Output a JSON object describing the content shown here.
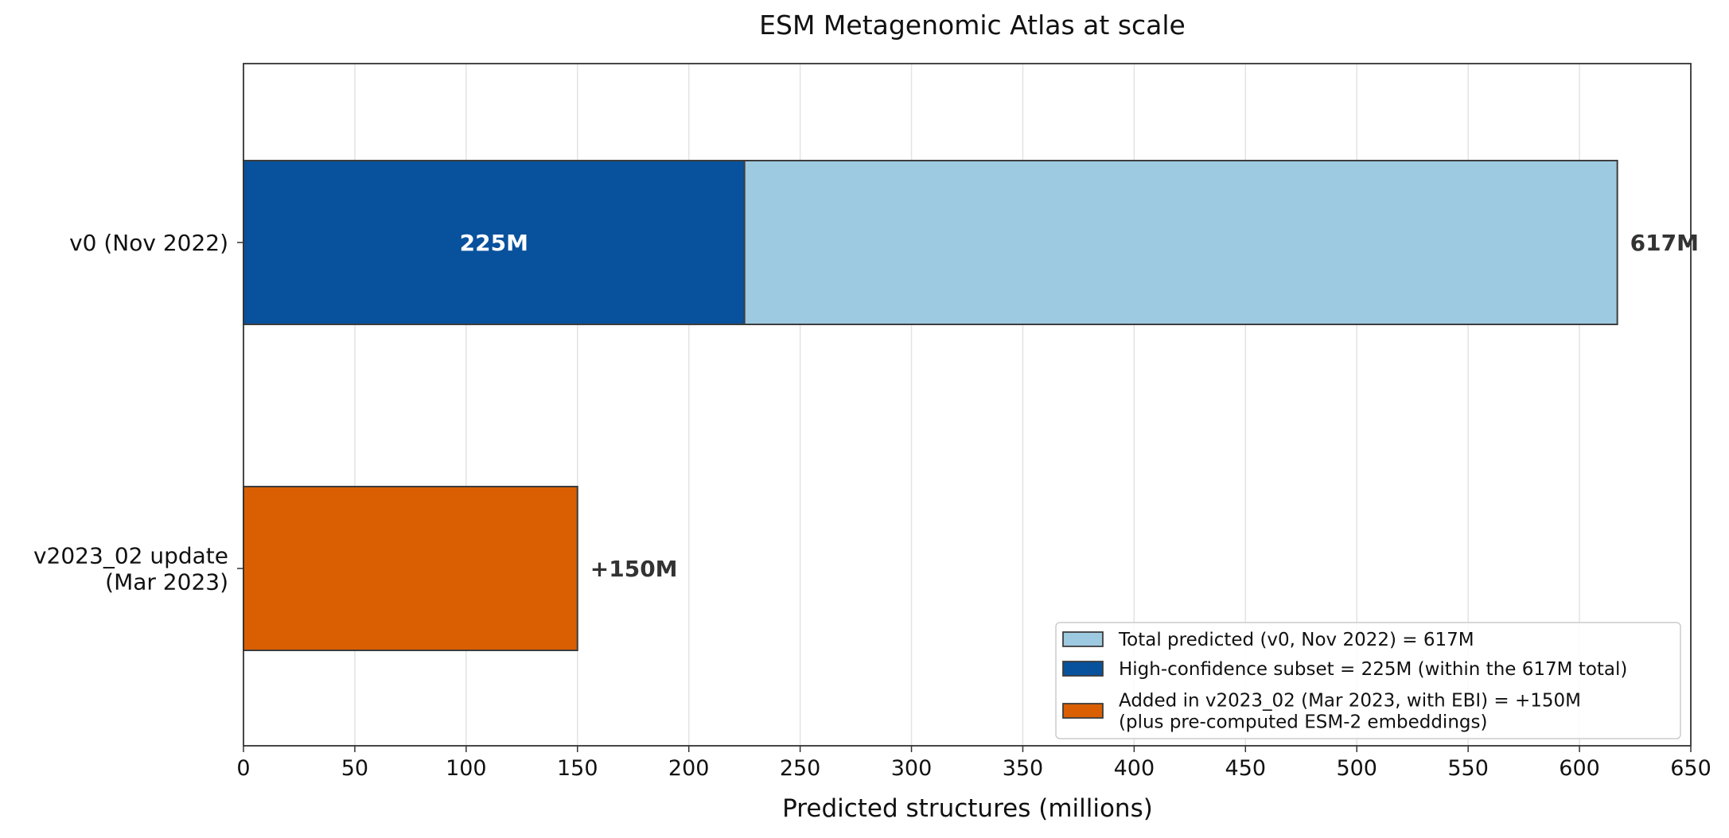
{
  "chart_data": {
    "type": "bar",
    "orientation": "horizontal",
    "stacked": true,
    "title": "ESM Metagenomic Atlas at scale",
    "xlabel": "Predicted structures (millions)",
    "ylabel": "",
    "xlim": [
      0,
      650
    ],
    "xticks": [
      0,
      50,
      100,
      150,
      200,
      250,
      300,
      350,
      400,
      450,
      500,
      550,
      600,
      650
    ],
    "grid": "x",
    "categories": [
      {
        "label_lines": [
          "v0 (Nov 2022)"
        ]
      },
      {
        "label_lines": [
          "v2023_02 update",
          "(Mar 2023)"
        ]
      }
    ],
    "series": [
      {
        "name": "Total predicted (v0, Nov 2022) = 617M",
        "color": "#9ecae1",
        "category": 0,
        "start": 0,
        "value": 617
      },
      {
        "name": "High-confidence subset = 225M (within the 617M total)",
        "color": "#08519c",
        "category": 0,
        "start": 0,
        "value": 225
      },
      {
        "name": "Added in v2023_02 (Mar 2023, with EBI) = +150M\n(plus pre-computed ESM-2 embeddings)",
        "color": "#d95f02",
        "category": 1,
        "start": 0,
        "value": 150
      }
    ],
    "annotations": [
      {
        "text": "225M",
        "category": 0,
        "x": 112.5,
        "position": "inside",
        "color": "#ffffff"
      },
      {
        "text": "617M",
        "category": 0,
        "x": 617,
        "position": "outside",
        "color": "#333333"
      },
      {
        "text": "+150M",
        "category": 1,
        "x": 150,
        "position": "outside",
        "color": "#333333"
      }
    ],
    "legend": {
      "placement": "lower-right",
      "entries": [
        {
          "lines": [
            "Total predicted (v0, Nov 2022) = 617M"
          ],
          "color": "#9ecae1"
        },
        {
          "lines": [
            "High-confidence subset = 225M (within the 617M total)"
          ],
          "color": "#08519c"
        },
        {
          "lines": [
            "Added in v2023_02 (Mar 2023, with EBI) = +150M",
            "(plus pre-computed ESM-2 embeddings)"
          ],
          "color": "#d95f02"
        }
      ]
    }
  }
}
